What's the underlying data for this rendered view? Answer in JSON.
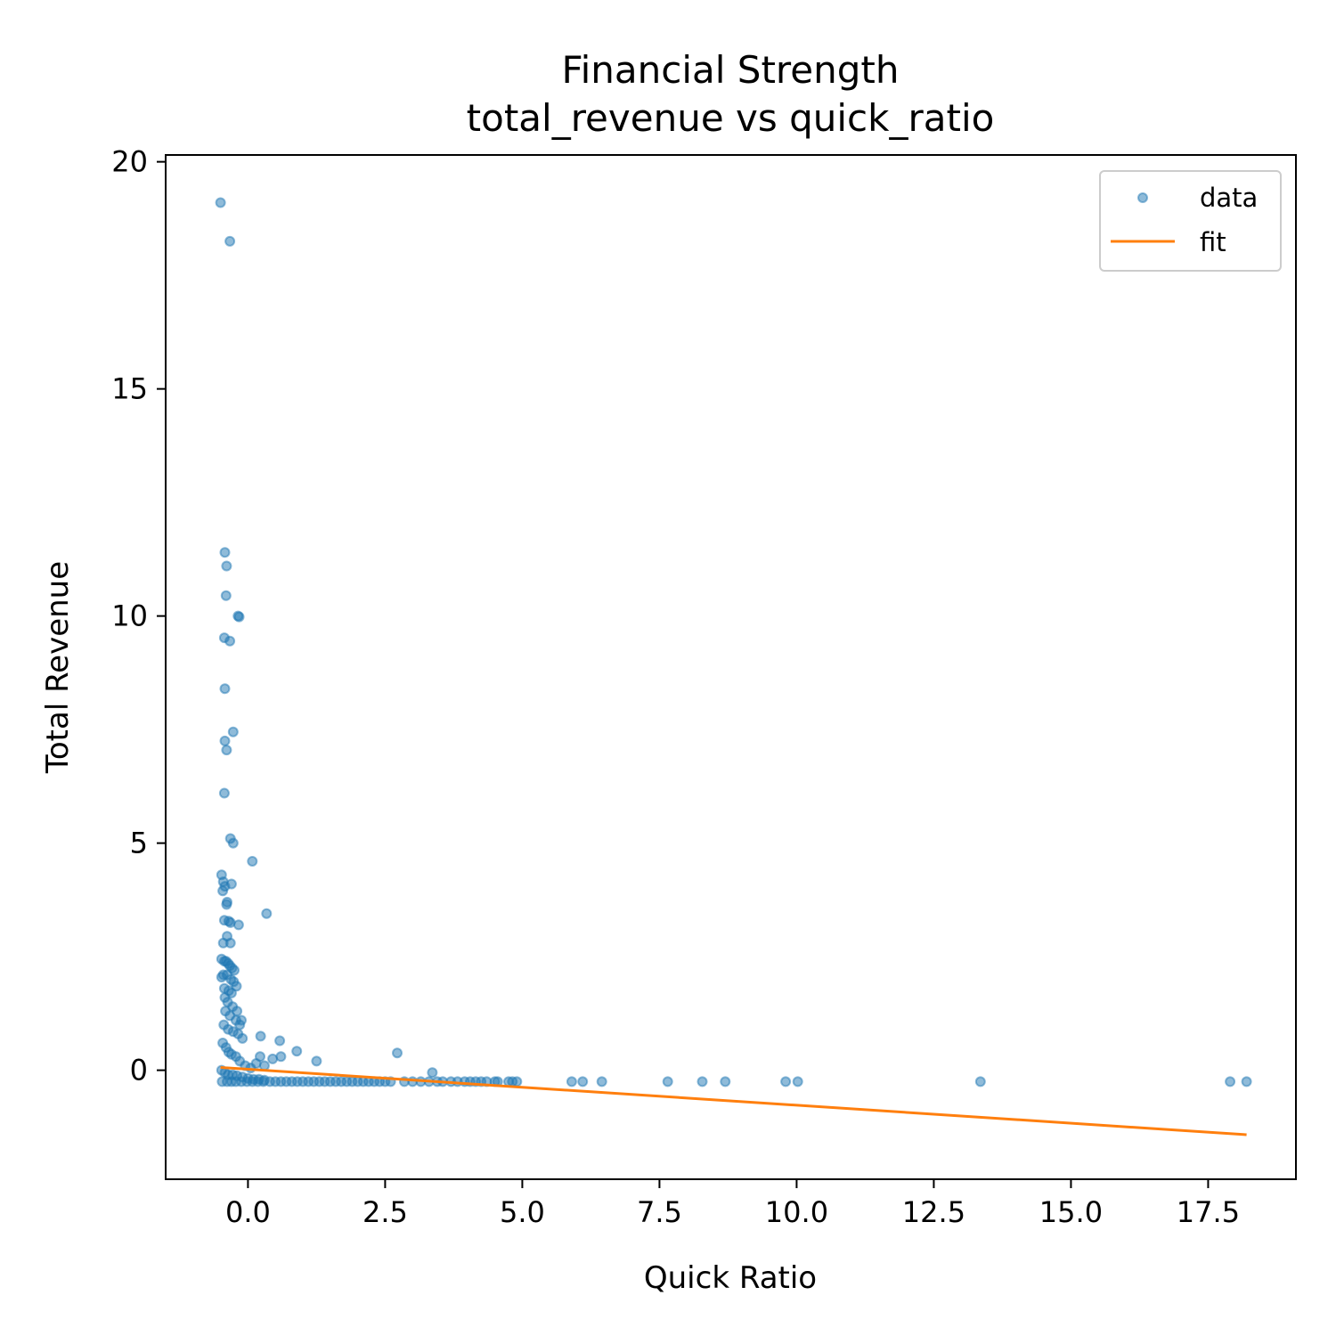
{
  "chart_data": {
    "type": "scatter",
    "title": "Financial Strength",
    "subtitle": "total_revenue vs quick_ratio",
    "xlabel": "Quick Ratio",
    "ylabel": "Total Revenue",
    "xlim": [
      -1.5,
      19.1
    ],
    "ylim": [
      -2.4,
      20.15
    ],
    "xticks": [
      0.0,
      2.5,
      5.0,
      7.5,
      10.0,
      12.5,
      15.0,
      17.5
    ],
    "xtick_labels": [
      "0.0",
      "2.5",
      "5.0",
      "7.5",
      "10.0",
      "12.5",
      "15.0",
      "17.5"
    ],
    "yticks": [
      0,
      5,
      10,
      15,
      20
    ],
    "ytick_labels": [
      "0",
      "5",
      "10",
      "15",
      "20"
    ],
    "grid": false,
    "legend": {
      "position": "top-right",
      "entries": [
        "data",
        "fit"
      ]
    },
    "colors": {
      "data": "#1f77b4",
      "fit": "#ff7f0e"
    },
    "series": [
      {
        "name": "data",
        "kind": "scatter",
        "x": [
          -0.5,
          -0.33,
          -0.42,
          -0.39,
          -0.4,
          -0.18,
          -0.16,
          -0.43,
          -0.33,
          -0.42,
          -0.27,
          -0.42,
          -0.39,
          -0.43,
          -0.32,
          -0.27,
          0.08,
          -0.48,
          -0.45,
          -0.42,
          -0.3,
          -0.46,
          -0.38,
          -0.39,
          0.34,
          -0.43,
          -0.35,
          -0.32,
          -0.17,
          -0.38,
          -0.45,
          -0.32,
          -0.48,
          -0.43,
          -0.4,
          -0.36,
          -0.33,
          -0.29,
          -0.25,
          -0.45,
          -0.48,
          -0.38,
          -0.31,
          -0.26,
          -0.21,
          -0.43,
          -0.35,
          -0.3,
          -0.42,
          -0.37,
          -0.28,
          -0.2,
          -0.12,
          -0.41,
          -0.33,
          -0.22,
          -0.15,
          -0.44,
          -0.36,
          -0.27,
          -0.18,
          -0.1,
          0.23,
          0.58,
          0.89,
          1.25,
          0.22,
          0.45,
          0.6,
          0.15,
          0.3,
          -0.46,
          -0.4,
          -0.35,
          -0.3,
          -0.22,
          -0.15,
          -0.05,
          0.05,
          -0.48,
          -0.42,
          -0.36,
          -0.28,
          -0.2,
          -0.1,
          0.0,
          0.1,
          0.2,
          0.3,
          -0.47,
          -0.38,
          -0.3,
          -0.22,
          -0.12,
          -0.02,
          0.08,
          0.18,
          0.28,
          0.4,
          0.5,
          0.6,
          0.7,
          0.8,
          0.9,
          1.0,
          1.1,
          1.2,
          1.3,
          1.4,
          1.5,
          1.6,
          1.7,
          1.8,
          1.9,
          2.0,
          2.1,
          2.2,
          2.3,
          2.4,
          2.5,
          2.6,
          2.72,
          2.85,
          3.0,
          3.15,
          3.3,
          3.36,
          3.45,
          3.55,
          3.7,
          3.82,
          3.95,
          4.05,
          4.15,
          4.25,
          4.35,
          4.5,
          4.55,
          4.75,
          4.82,
          4.9,
          5.9,
          6.1,
          6.45,
          7.65,
          8.28,
          8.7,
          9.8,
          10.02,
          13.35,
          17.9,
          18.2
        ],
        "y": [
          19.1,
          18.25,
          11.4,
          11.1,
          10.45,
          10.0,
          9.98,
          9.52,
          9.45,
          8.4,
          7.45,
          7.25,
          7.05,
          6.1,
          5.1,
          5.0,
          4.6,
          4.3,
          4.15,
          4.05,
          4.1,
          3.95,
          3.7,
          3.65,
          3.45,
          3.3,
          3.28,
          3.25,
          3.2,
          2.95,
          2.8,
          2.8,
          2.45,
          2.4,
          2.4,
          2.35,
          2.3,
          2.25,
          2.2,
          2.1,
          2.05,
          2.1,
          2.0,
          1.95,
          1.85,
          1.8,
          1.75,
          1.7,
          1.6,
          1.5,
          1.4,
          1.3,
          1.1,
          1.3,
          1.2,
          1.1,
          1.0,
          1.0,
          0.9,
          0.85,
          0.8,
          0.7,
          0.75,
          0.65,
          0.42,
          0.2,
          0.3,
          0.25,
          0.3,
          0.15,
          0.1,
          0.6,
          0.5,
          0.4,
          0.35,
          0.3,
          0.2,
          0.1,
          0.05,
          0.0,
          -0.05,
          -0.1,
          -0.1,
          -0.12,
          -0.15,
          -0.18,
          -0.2,
          -0.2,
          -0.22,
          -0.25,
          -0.25,
          -0.25,
          -0.25,
          -0.25,
          -0.25,
          -0.25,
          -0.25,
          -0.25,
          -0.25,
          -0.25,
          -0.25,
          -0.25,
          -0.25,
          -0.25,
          -0.25,
          -0.25,
          -0.25,
          -0.25,
          -0.25,
          -0.25,
          -0.25,
          -0.25,
          -0.25,
          -0.25,
          -0.25,
          -0.25,
          -0.25,
          -0.25,
          -0.25,
          -0.25,
          -0.25,
          0.38,
          -0.25,
          -0.25,
          -0.25,
          -0.25,
          -0.05,
          -0.25,
          -0.25,
          -0.25,
          -0.25,
          -0.25,
          -0.25,
          -0.25,
          -0.25,
          -0.25,
          -0.25,
          -0.25,
          -0.25,
          -0.25,
          -0.25,
          -0.25,
          -0.25,
          -0.25,
          -0.25,
          -0.25,
          -0.25,
          -0.25,
          -0.25,
          -0.25,
          -0.25,
          -0.25
        ]
      },
      {
        "name": "fit",
        "kind": "line",
        "x": [
          -0.5,
          18.2
        ],
        "y": [
          0.06,
          -1.42
        ]
      }
    ]
  }
}
